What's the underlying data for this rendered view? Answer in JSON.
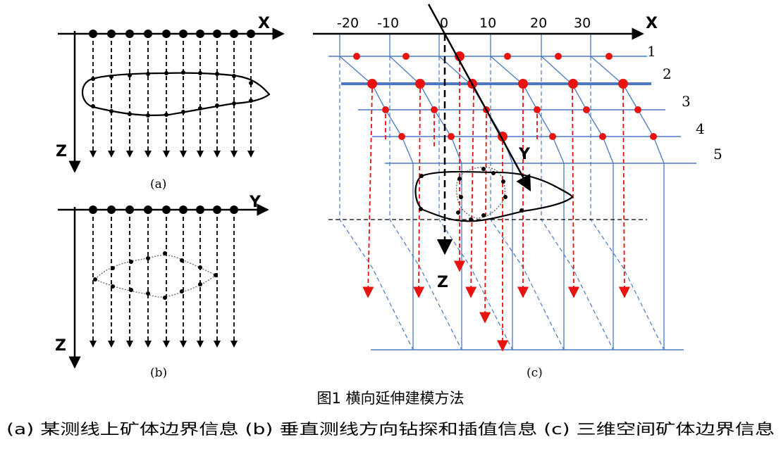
{
  "panel_a": {
    "x_axis_label": "X",
    "z_axis_label": "Z",
    "sublabel": "(a)"
  },
  "panel_b": {
    "y_axis_label": "Y",
    "z_axis_label": "Z",
    "sublabel": "(b)"
  },
  "panel_c": {
    "x_axis_label": "X",
    "y_axis_label": "Y",
    "z_axis_label": "Z",
    "x_ticks": [
      "-20",
      "-10",
      "0",
      "10",
      "20",
      "30"
    ],
    "line_numbers": [
      "1",
      "2",
      "3",
      "4",
      "5"
    ],
    "sublabel": "(c)"
  },
  "caption": {
    "title": "图1  横向延伸建模方法",
    "subtitle": "(a) 某测线上矿体边界信息 (b) 垂直测线方向钻探和插值信息 (c) 三维空间矿体边界信息"
  },
  "colors": {
    "blue_line": "#4a78c4",
    "red_marker": "#e8130f",
    "black": "#000000"
  }
}
